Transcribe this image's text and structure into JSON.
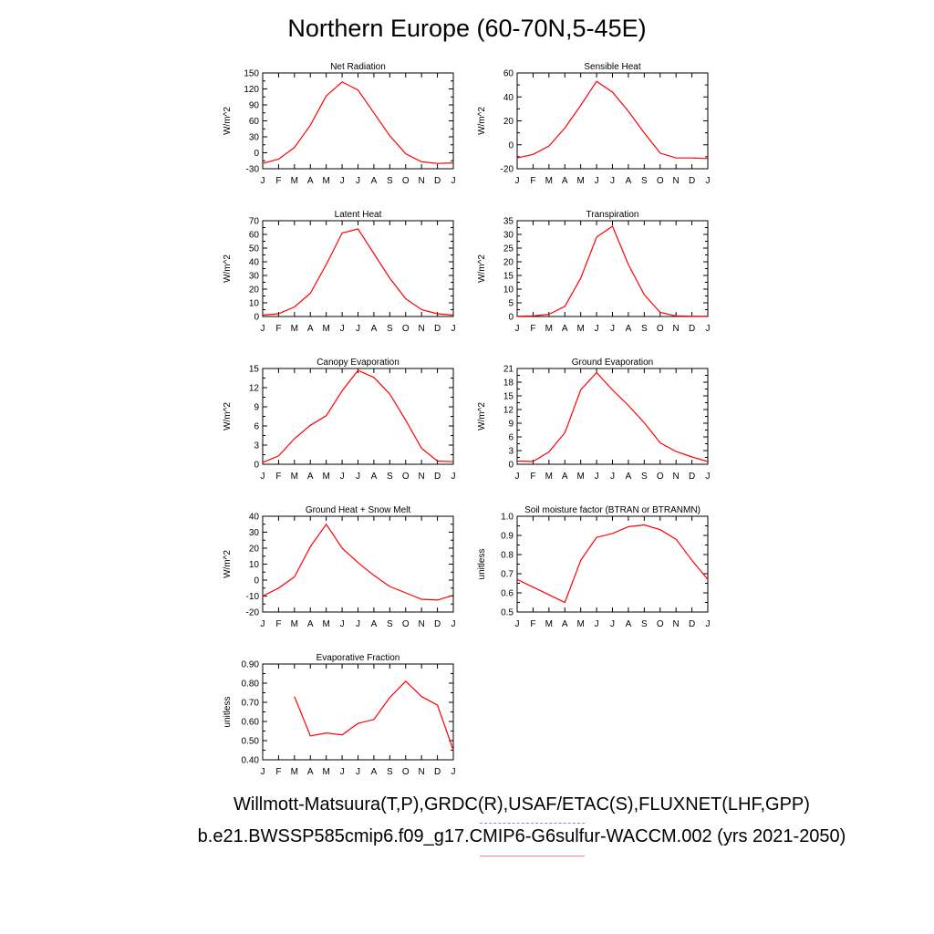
{
  "title": "Northern Europe (60-70N,5-45E)",
  "months": [
    "J",
    "F",
    "M",
    "A",
    "M",
    "J",
    "J",
    "A",
    "S",
    "O",
    "N",
    "D",
    "J"
  ],
  "colors": {
    "model": "#ff0000",
    "obs_legend": "#7f7fff",
    "model_legend": "#ff7f7f"
  },
  "legend": {
    "obs": "Willmott-Matsuura(T,P),GRDC(R),USAF/ETAC(S),FLUXNET(LHF,GPP)",
    "case": "b.e21.BWSSP585cmip6.f09_g17.CMIP6-G6sulfur-WACCM.002 (yrs 2021-2050)"
  },
  "chart_data": [
    {
      "type": "line",
      "title": "Net Radiation",
      "ylabel": "W/m^2",
      "ylim": [
        -30,
        150
      ],
      "yticks": [
        "-30",
        "0",
        "30",
        "60",
        "90",
        "120",
        "150"
      ],
      "x": [
        "J",
        "F",
        "M",
        "A",
        "M",
        "J",
        "J",
        "A",
        "S",
        "O",
        "N",
        "D",
        "J"
      ],
      "series": [
        {
          "values": [
            -20,
            -12,
            10,
            52,
            107,
            133,
            118,
            75,
            32,
            -2,
            -17,
            -20,
            -19
          ]
        }
      ]
    },
    {
      "type": "line",
      "title": "Sensible Heat",
      "ylabel": "W/m^2",
      "ylim": [
        -20,
        60
      ],
      "yticks": [
        "-20",
        "0",
        "20",
        "40",
        "60"
      ],
      "x": [
        "J",
        "F",
        "M",
        "A",
        "M",
        "J",
        "J",
        "A",
        "S",
        "O",
        "N",
        "D",
        "J"
      ],
      "series": [
        {
          "values": [
            -11,
            -8,
            -1,
            14,
            33,
            53,
            44,
            28,
            10,
            -7,
            -11,
            -11,
            -11.5
          ]
        }
      ]
    },
    {
      "type": "line",
      "title": "Latent Heat",
      "ylabel": "W/m^2",
      "ylim": [
        0,
        70
      ],
      "yticks": [
        "0",
        "10",
        "20",
        "30",
        "40",
        "50",
        "60",
        "70"
      ],
      "x": [
        "J",
        "F",
        "M",
        "A",
        "M",
        "J",
        "J",
        "A",
        "S",
        "O",
        "N",
        "D",
        "J"
      ],
      "series": [
        {
          "values": [
            1,
            2,
            7,
            17,
            38,
            61,
            64,
            46,
            28,
            13,
            5,
            2,
            1
          ]
        }
      ]
    },
    {
      "type": "line",
      "title": "Transpiration",
      "ylabel": "W/m^2",
      "ylim": [
        0,
        35
      ],
      "yticks": [
        "0",
        "5",
        "10",
        "15",
        "20",
        "25",
        "30",
        "35"
      ],
      "x": [
        "J",
        "F",
        "M",
        "A",
        "M",
        "J",
        "J",
        "A",
        "S",
        "O",
        "N",
        "D",
        "J"
      ],
      "series": [
        {
          "values": [
            0.1,
            0.2,
            0.8,
            3.7,
            14,
            29,
            33,
            19,
            8,
            1.5,
            0.2,
            0.1,
            0.1
          ]
        }
      ]
    },
    {
      "type": "line",
      "title": "Canopy Evaporation",
      "ylabel": "W/m^2",
      "ylim": [
        0,
        15
      ],
      "yticks": [
        "0",
        "3",
        "6",
        "9",
        "12",
        "15"
      ],
      "x": [
        "J",
        "F",
        "M",
        "A",
        "M",
        "J",
        "J",
        "A",
        "S",
        "O",
        "N",
        "D",
        "J"
      ],
      "series": [
        {
          "values": [
            0.3,
            1.3,
            4,
            6.1,
            7.6,
            11.5,
            14.7,
            13.6,
            11,
            6.9,
            2.5,
            0.5,
            0.4
          ]
        }
      ]
    },
    {
      "type": "line",
      "title": "Ground Evaporation",
      "ylabel": "W/m^2",
      "ylim": [
        0,
        21
      ],
      "yticks": [
        "0",
        "3",
        "6",
        "9",
        "12",
        "15",
        "18",
        "21"
      ],
      "x": [
        "J",
        "F",
        "M",
        "A",
        "M",
        "J",
        "J",
        "A",
        "S",
        "O",
        "N",
        "D",
        "J"
      ],
      "series": [
        {
          "values": [
            0.7,
            0.6,
            2.7,
            6.9,
            16.3,
            20.1,
            16.3,
            12.9,
            9.1,
            4.7,
            2.8,
            1.6,
            0.6
          ]
        }
      ]
    },
    {
      "type": "line",
      "title": "Ground Heat + Snow Melt",
      "ylabel": "W/m^2",
      "ylim": [
        -20,
        40
      ],
      "yticks": [
        "-20",
        "-10",
        "0",
        "10",
        "20",
        "30",
        "40"
      ],
      "x": [
        "J",
        "F",
        "M",
        "A",
        "M",
        "J",
        "J",
        "A",
        "S",
        "O",
        "N",
        "D",
        "J"
      ],
      "series": [
        {
          "values": [
            -10,
            -5,
            2,
            21,
            35,
            20,
            11,
            3,
            -4,
            -8,
            -12,
            -12.5,
            -9.5
          ]
        }
      ]
    },
    {
      "type": "line",
      "title": "Soil moisture factor (BTRAN or BTRANMN)",
      "ylabel": "unitless",
      "ylim": [
        0.5,
        1.0
      ],
      "yticks": [
        "0.5",
        "0.6",
        "0.7",
        "0.8",
        "0.9",
        "1.0"
      ],
      "x": [
        "J",
        "F",
        "M",
        "A",
        "M",
        "J",
        "J",
        "A",
        "S",
        "O",
        "N",
        "D",
        "J"
      ],
      "series": [
        {
          "values": [
            0.67,
            0.63,
            0.59,
            0.55,
            0.77,
            0.89,
            0.91,
            0.945,
            0.955,
            0.93,
            0.88,
            0.77,
            0.67
          ]
        }
      ]
    },
    {
      "type": "line",
      "title": "Evaporative Fraction",
      "ylabel": "unitless",
      "ylim": [
        0.4,
        0.9
      ],
      "yticks": [
        "0.40",
        "0.50",
        "0.60",
        "0.70",
        "0.80",
        "0.90"
      ],
      "x": [
        "J",
        "F",
        "M",
        "A",
        "M",
        "J",
        "J",
        "A",
        "S",
        "O",
        "N",
        "D",
        "J"
      ],
      "series": [
        {
          "values": [
            null,
            null,
            0.73,
            0.525,
            0.54,
            0.53,
            0.59,
            0.61,
            0.725,
            0.81,
            0.73,
            0.685,
            0.45
          ]
        }
      ]
    }
  ]
}
